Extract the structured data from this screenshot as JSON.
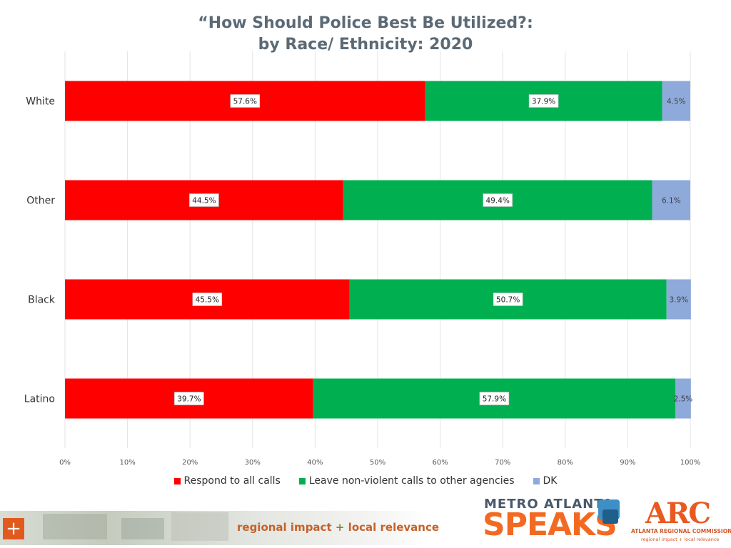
{
  "chart_data": {
    "type": "bar",
    "orientation": "horizontal",
    "stacked": true,
    "title_line1": "“How Should Police Best Be Utilized?:",
    "title_line2": "by Race/ Ethnicity: 2020",
    "categories": [
      "White",
      "Other",
      "Black",
      "Latino"
    ],
    "series": [
      {
        "name": "Respond to all calls",
        "color": "#ff0000",
        "values": [
          57.6,
          44.5,
          45.5,
          39.7
        ]
      },
      {
        "name": "Leave non-violent calls to other agencies",
        "color": "#00b050",
        "values": [
          37.9,
          49.4,
          50.7,
          57.9
        ]
      },
      {
        "name": "DK",
        "color": "#8eaadb",
        "values": [
          4.5,
          6.1,
          3.9,
          2.5
        ]
      }
    ],
    "xlim": [
      0,
      100
    ],
    "x_ticks": [
      "0%",
      "10%",
      "20%",
      "30%",
      "40%",
      "50%",
      "60%",
      "70%",
      "80%",
      "90%",
      "100%"
    ],
    "value_suffix": "%",
    "grid": true,
    "legend_position": "bottom"
  },
  "footer": {
    "tagline_left": "regional impact",
    "tagline_plus": "+",
    "tagline_right": "local relevance",
    "plus_icon": "plus-icon",
    "mas_top": "METRO ATLANTA",
    "mas_big": "SPEAKS",
    "arc_logo": "ARC",
    "arc_name": "ATLANTA REGIONAL COMMISSION",
    "arc_sub": "regional impact + local relevance"
  }
}
